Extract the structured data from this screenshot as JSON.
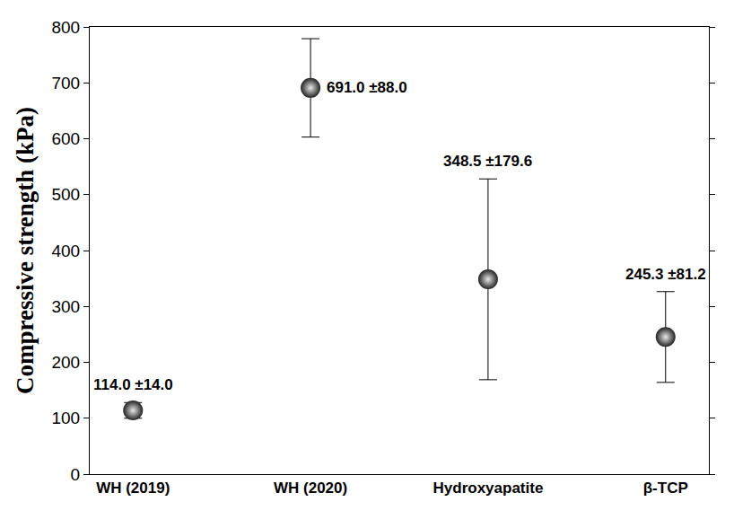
{
  "chart_data": {
    "type": "scatter",
    "categories": [
      "WH (2019)",
      "WH (2020)",
      "Hydroxyapatite",
      "β-TCP"
    ],
    "values": [
      114.0,
      691.0,
      348.5,
      245.3
    ],
    "errors": [
      14.0,
      88.0,
      179.6,
      81.2
    ],
    "value_labels": [
      "114.0 ±14.0",
      "691.0 ±88.0",
      "348.5 ±179.6",
      "245.3 ±81.2"
    ],
    "data_labels": true,
    "ylabel": "Compressive strength (kPa)",
    "ylim": [
      0,
      800
    ],
    "yticks": [
      0,
      100,
      200,
      300,
      400,
      500,
      600,
      700,
      800
    ],
    "grid": false,
    "color": "#222222",
    "marker": "circle"
  }
}
